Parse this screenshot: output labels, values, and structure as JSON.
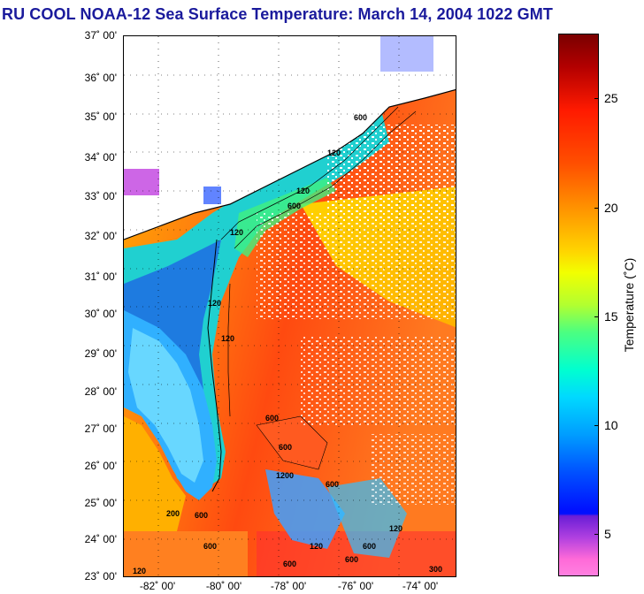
{
  "title": "RU COOL  NOAA-12  Sea Surface Temperature:  March 14, 2004 1022 GMT",
  "map": {
    "lat_labels": [
      "37˚ 00'",
      "36˚ 00'",
      "35˚ 00'",
      "34˚ 00'",
      "33˚ 00'",
      "32˚ 00'",
      "31˚ 00'",
      "30˚ 00'",
      "29˚ 00'",
      "28˚ 00'",
      "27˚ 00'",
      "26˚ 00'",
      "25˚ 00'",
      "24˚ 00'",
      "23˚ 00'"
    ],
    "lon_labels": [
      "-82˚ 00'",
      "-80˚ 00'",
      "-78˚ 00'",
      "-76˚ 00'",
      "-74˚ 00'"
    ],
    "isobath_labels": [
      "120",
      "120",
      "120",
      "600",
      "600",
      "120",
      "600",
      "600",
      "1200",
      "600",
      "120",
      "600",
      "120",
      "600",
      "600",
      "120",
      "200",
      "600",
      "120",
      "600",
      "300"
    ]
  },
  "colorbar": {
    "title": "Temperature (˚C)",
    "tick_labels": [
      "25",
      "20",
      "15",
      "10",
      "5"
    ],
    "tick_values": [
      25,
      20,
      15,
      10,
      5
    ],
    "range": [
      3,
      28
    ]
  }
}
